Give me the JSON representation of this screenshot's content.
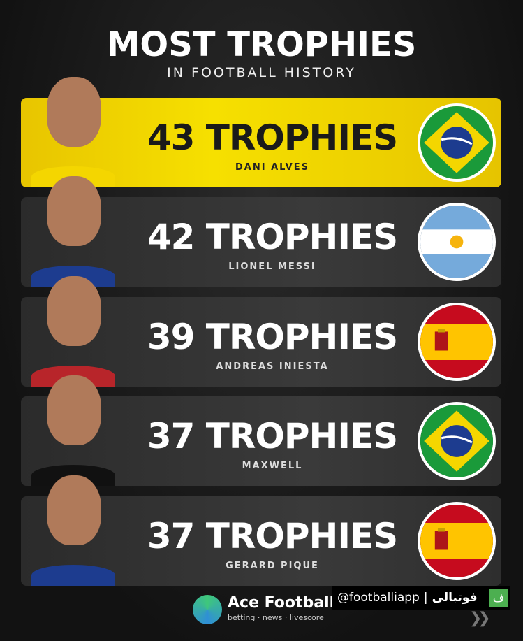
{
  "header": {
    "title": "MOST TROPHIES",
    "subtitle": "IN FOOTBALL HISTORY"
  },
  "players": [
    {
      "count": "43 TROPHIES",
      "name": "DANI ALVES",
      "flag": "brazil",
      "highlight": true
    },
    {
      "count": "42 TROPHIES",
      "name": "LIONEL MESSI",
      "flag": "argentina",
      "highlight": false
    },
    {
      "count": "39 TROPHIES",
      "name": "ANDREAS INIESTA",
      "flag": "spain",
      "highlight": false
    },
    {
      "count": "37 TROPHIES",
      "name": "MAXWELL",
      "flag": "brazil",
      "highlight": false
    },
    {
      "count": "37 TROPHIES",
      "name": "GERARD PIQUE",
      "flag": "spain",
      "highlight": false
    }
  ],
  "footer": {
    "brand": "Ace Football",
    "tagline": "betting · news · livescore",
    "watermark_handle": "@footballiapp",
    "watermark_brand": "فوتبالی",
    "watermark_icon": "ف"
  },
  "colors": {
    "highlight": "#f2d900",
    "card": "#333333",
    "background": "#161616"
  }
}
